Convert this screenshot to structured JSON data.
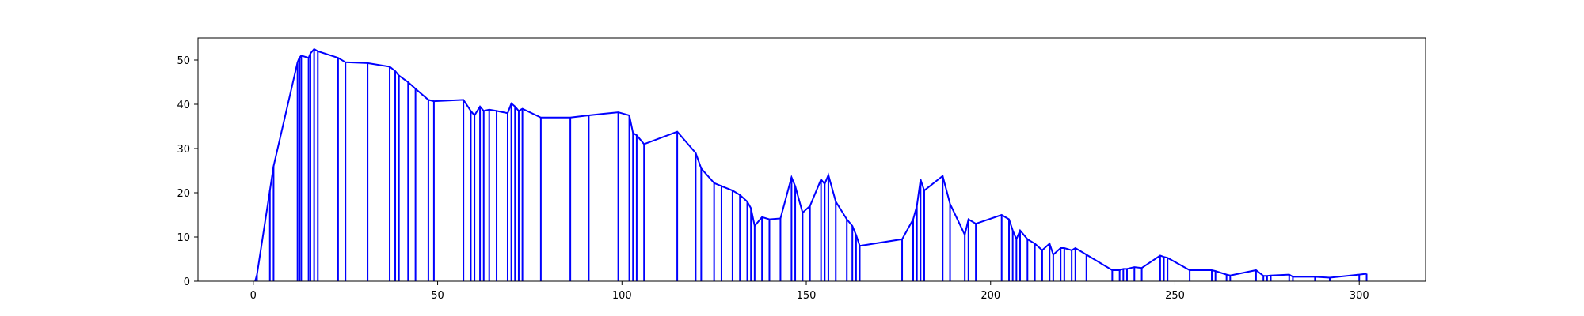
{
  "chart_data": {
    "type": "line",
    "title": "",
    "xlabel": "",
    "ylabel": "",
    "xlim": [
      -15,
      318
    ],
    "ylim": [
      0,
      55
    ],
    "xticks": [
      0,
      50,
      100,
      150,
      200,
      250,
      300
    ],
    "yticks": [
      0,
      10,
      20,
      30,
      40,
      50
    ],
    "grid": false,
    "series": [
      {
        "color": "#0000ff",
        "drop_lines": true,
        "x": [
          0.5,
          1,
          4.5,
          5.5,
          12,
          12.5,
          13,
          15,
          15.5,
          16.5,
          17.5,
          23,
          25,
          31,
          37,
          38.5,
          39.5,
          42,
          44,
          47.5,
          49,
          57,
          59,
          60,
          61.5,
          62.5,
          64,
          66,
          69,
          70,
          71,
          72,
          73,
          78,
          86,
          91,
          99,
          102,
          103,
          104,
          106,
          115,
          120,
          121.5,
          125,
          127,
          130,
          132,
          134,
          135,
          136,
          138,
          140,
          143,
          146,
          147,
          149,
          151,
          154,
          155,
          156,
          158,
          161,
          162.5,
          163.5,
          164.5,
          176,
          179,
          180,
          181,
          182,
          187,
          189,
          193,
          194,
          196,
          203,
          205,
          206,
          207,
          208,
          210,
          212,
          214,
          216,
          217,
          219,
          220,
          222,
          223,
          226,
          233,
          235,
          236,
          237,
          239,
          241,
          246,
          247,
          248,
          254,
          260,
          261,
          264,
          265,
          272,
          274,
          275,
          276,
          281,
          282,
          288,
          292,
          300,
          302
        ],
        "y": [
          0,
          1.5,
          20.5,
          26,
          49.5,
          50.5,
          51,
          50.5,
          51.5,
          52.5,
          52,
          50.5,
          49.5,
          49.3,
          48.5,
          47.5,
          46.5,
          45,
          43.5,
          41,
          40.7,
          41,
          38.5,
          37.5,
          39.5,
          38.5,
          38.8,
          38.5,
          38,
          40.2,
          39.5,
          38.5,
          39,
          37,
          37,
          37.5,
          38.2,
          37.5,
          33.5,
          33,
          31,
          33.8,
          29,
          25.5,
          22.2,
          21.5,
          20.5,
          19.5,
          18,
          16.5,
          12.5,
          14.5,
          14,
          14.2,
          23.5,
          21.5,
          15.5,
          17,
          23,
          22,
          24,
          18,
          14,
          12.5,
          10.5,
          8,
          9.5,
          14,
          17,
          23,
          20.5,
          23.8,
          17.5,
          10.5,
          14,
          13,
          15,
          14,
          11.5,
          9.5,
          11.5,
          9.5,
          8.5,
          7,
          8.5,
          6,
          7.5,
          7.5,
          7,
          7.5,
          6,
          2.5,
          2.5,
          2.8,
          2.8,
          3.2,
          3,
          5.8,
          5.5,
          5.3,
          2.5,
          2.5,
          2.3,
          1.5,
          1.3,
          2.5,
          1.2,
          1.2,
          1.3,
          1.5,
          1,
          1,
          0.8,
          1.5,
          1.7
        ]
      }
    ]
  }
}
